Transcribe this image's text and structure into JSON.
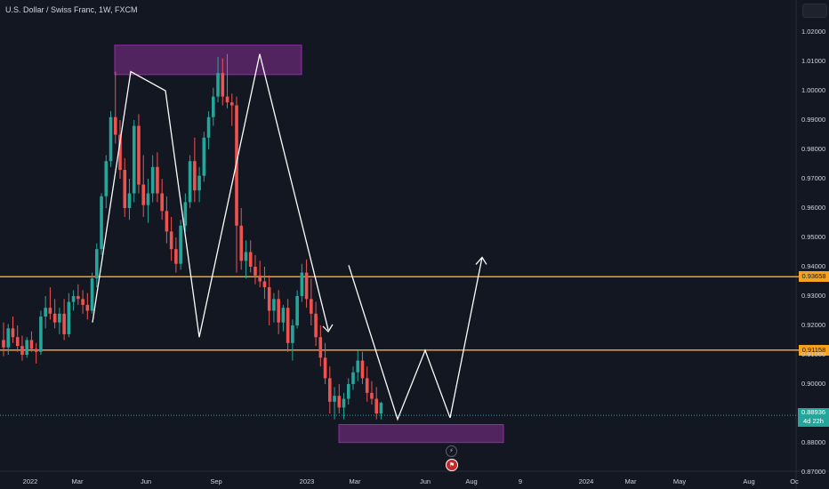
{
  "header": {
    "title": "U.S. Dollar / Swiss Franc, 1W, FXCM"
  },
  "colors": {
    "background": "#131722",
    "up": "#26a69a",
    "down": "#ef5350",
    "level": "#f7a21b",
    "zone_fill": "#7b2d8b",
    "zone_stroke": "#9c27b0",
    "pattern": "#ffffff"
  },
  "price_axis": {
    "ticks": [
      "1.02000",
      "1.01000",
      "1.00000",
      "0.99000",
      "0.98000",
      "0.97000",
      "0.96000",
      "0.95000",
      "0.94000",
      "0.93000",
      "0.92000",
      "0.91000",
      "0.90000",
      "0.88000",
      "0.87000"
    ],
    "level_labels": [
      "0.93658",
      "0.91158"
    ],
    "last_price": "0.88936",
    "countdown": "4d 22h"
  },
  "time_axis": {
    "ticks": [
      "2022",
      "Mar",
      "Jun",
      "Sep",
      "2023",
      "Mar",
      "Jun",
      "Aug",
      "9",
      "2024",
      "Mar",
      "May",
      "Aug",
      "Oc"
    ]
  },
  "events": [
    {
      "icon": "lightning-icon"
    },
    {
      "icon": "flag-icon"
    }
  ],
  "chart_data": {
    "type": "candlestick",
    "ylim": [
      0.87,
      1.0287
    ],
    "levels": [
      0.93658,
      0.91158
    ],
    "last_price": 0.88936,
    "zones": [
      {
        "from": "2022-04",
        "to": "2022-11",
        "low": 1.0055,
        "high": 1.0155
      },
      {
        "from": "2023-04",
        "to": "2023-10",
        "low": 0.8801,
        "high": 0.8862
      }
    ],
    "pattern_path": [
      [
        0.921,
        0.9205
      ],
      [
        0.9237,
        1.0065
      ],
      [
        1.0,
        0.9605
      ],
      [
        0.916,
        0.8895
      ],
      [
        0.9405,
        1.0125
      ],
      [
        0.9185,
        0.9105
      ],
      [
        0.9085,
        0.888
      ],
      [
        0.9115,
        0.8885
      ]
    ],
    "projection_arrow": {
      "from": 0.8885,
      "to": 0.9432
    },
    "ohlc": [
      [
        0.915,
        0.921,
        0.9095,
        0.9125
      ],
      [
        0.9125,
        0.9205,
        0.91,
        0.919
      ],
      [
        0.919,
        0.923,
        0.914,
        0.916
      ],
      [
        0.916,
        0.92,
        0.911,
        0.913
      ],
      [
        0.913,
        0.9165,
        0.908,
        0.91
      ],
      [
        0.91,
        0.916,
        0.909,
        0.915
      ],
      [
        0.915,
        0.918,
        0.911,
        0.912
      ],
      [
        0.912,
        0.914,
        0.907,
        0.911
      ],
      [
        0.911,
        0.925,
        0.91,
        0.923
      ],
      [
        0.923,
        0.93,
        0.919,
        0.926
      ],
      [
        0.926,
        0.933,
        0.922,
        0.924
      ],
      [
        0.924,
        0.929,
        0.919,
        0.921
      ],
      [
        0.921,
        0.926,
        0.917,
        0.924
      ],
      [
        0.924,
        0.929,
        0.915,
        0.917
      ],
      [
        0.917,
        0.931,
        0.916,
        0.928
      ],
      [
        0.928,
        0.932,
        0.925,
        0.93
      ],
      [
        0.93,
        0.934,
        0.927,
        0.929
      ],
      [
        0.929,
        0.932,
        0.924,
        0.927
      ],
      [
        0.927,
        0.931,
        0.922,
        0.925
      ],
      [
        0.925,
        0.938,
        0.924,
        0.936
      ],
      [
        0.936,
        0.948,
        0.933,
        0.946
      ],
      [
        0.946,
        0.965,
        0.944,
        0.964
      ],
      [
        0.964,
        0.978,
        0.96,
        0.976
      ],
      [
        0.976,
        0.993,
        0.974,
        0.991
      ],
      [
        0.991,
        1.0065,
        0.982,
        0.985
      ],
      [
        0.985,
        0.99,
        0.97,
        0.973
      ],
      [
        0.973,
        0.977,
        0.957,
        0.96
      ],
      [
        0.96,
        0.97,
        0.956,
        0.965
      ],
      [
        0.965,
        0.99,
        0.962,
        0.988
      ],
      [
        0.988,
        0.992,
        0.965,
        0.968
      ],
      [
        0.968,
        0.978,
        0.957,
        0.961
      ],
      [
        0.961,
        0.97,
        0.955,
        0.965
      ],
      [
        0.965,
        0.978,
        0.962,
        0.974
      ],
      [
        0.974,
        0.979,
        0.962,
        0.965
      ],
      [
        0.965,
        0.97,
        0.956,
        0.959
      ],
      [
        0.959,
        0.964,
        0.948,
        0.952
      ],
      [
        0.952,
        0.957,
        0.942,
        0.946
      ],
      [
        0.946,
        0.95,
        0.938,
        0.941
      ],
      [
        0.941,
        0.956,
        0.939,
        0.954
      ],
      [
        0.954,
        0.965,
        0.952,
        0.962
      ],
      [
        0.962,
        0.978,
        0.96,
        0.976
      ],
      [
        0.976,
        0.984,
        0.962,
        0.966
      ],
      [
        0.966,
        0.974,
        0.962,
        0.971
      ],
      [
        0.971,
        0.986,
        0.969,
        0.984
      ],
      [
        0.984,
        0.993,
        0.98,
        0.991
      ],
      [
        0.991,
        1.001,
        0.988,
        0.998
      ],
      [
        0.998,
        1.0115,
        0.996,
        1.006
      ],
      [
        1.006,
        1.011,
        0.995,
        0.998
      ],
      [
        0.998,
        1.0125,
        0.994,
        0.996
      ],
      [
        0.996,
        0.999,
        0.988,
        0.995
      ],
      [
        0.995,
        0.998,
        0.938,
        0.954
      ],
      [
        0.954,
        0.96,
        0.939,
        0.942
      ],
      [
        0.942,
        0.949,
        0.936,
        0.945
      ],
      [
        0.945,
        0.949,
        0.938,
        0.94
      ],
      [
        0.94,
        0.944,
        0.934,
        0.937
      ],
      [
        0.937,
        0.942,
        0.933,
        0.935
      ],
      [
        0.935,
        0.94,
        0.929,
        0.933
      ],
      [
        0.933,
        0.937,
        0.92,
        0.925
      ],
      [
        0.925,
        0.931,
        0.921,
        0.929
      ],
      [
        0.929,
        0.932,
        0.917,
        0.921
      ],
      [
        0.921,
        0.927,
        0.918,
        0.926
      ],
      [
        0.926,
        0.929,
        0.911,
        0.914
      ],
      [
        0.914,
        0.922,
        0.908,
        0.92
      ],
      [
        0.92,
        0.932,
        0.919,
        0.93
      ],
      [
        0.93,
        0.941,
        0.928,
        0.938
      ],
      [
        0.938,
        0.9425,
        0.926,
        0.929
      ],
      [
        0.929,
        0.936,
        0.92,
        0.924
      ],
      [
        0.924,
        0.928,
        0.913,
        0.916
      ],
      [
        0.916,
        0.92,
        0.906,
        0.909
      ],
      [
        0.909,
        0.914,
        0.9,
        0.902
      ],
      [
        0.902,
        0.906,
        0.89,
        0.894
      ],
      [
        0.894,
        0.899,
        0.888,
        0.896
      ],
      [
        0.896,
        0.9,
        0.89,
        0.892
      ],
      [
        0.892,
        0.897,
        0.888,
        0.895
      ],
      [
        0.895,
        0.902,
        0.893,
        0.9
      ],
      [
        0.9,
        0.906,
        0.898,
        0.904
      ],
      [
        0.904,
        0.9115,
        0.901,
        0.908
      ],
      [
        0.908,
        0.911,
        0.9,
        0.902
      ],
      [
        0.902,
        0.906,
        0.894,
        0.897
      ],
      [
        0.897,
        0.901,
        0.893,
        0.895
      ],
      [
        0.895,
        0.899,
        0.888,
        0.89
      ],
      [
        0.89,
        0.894,
        0.888,
        0.8936
      ]
    ]
  }
}
